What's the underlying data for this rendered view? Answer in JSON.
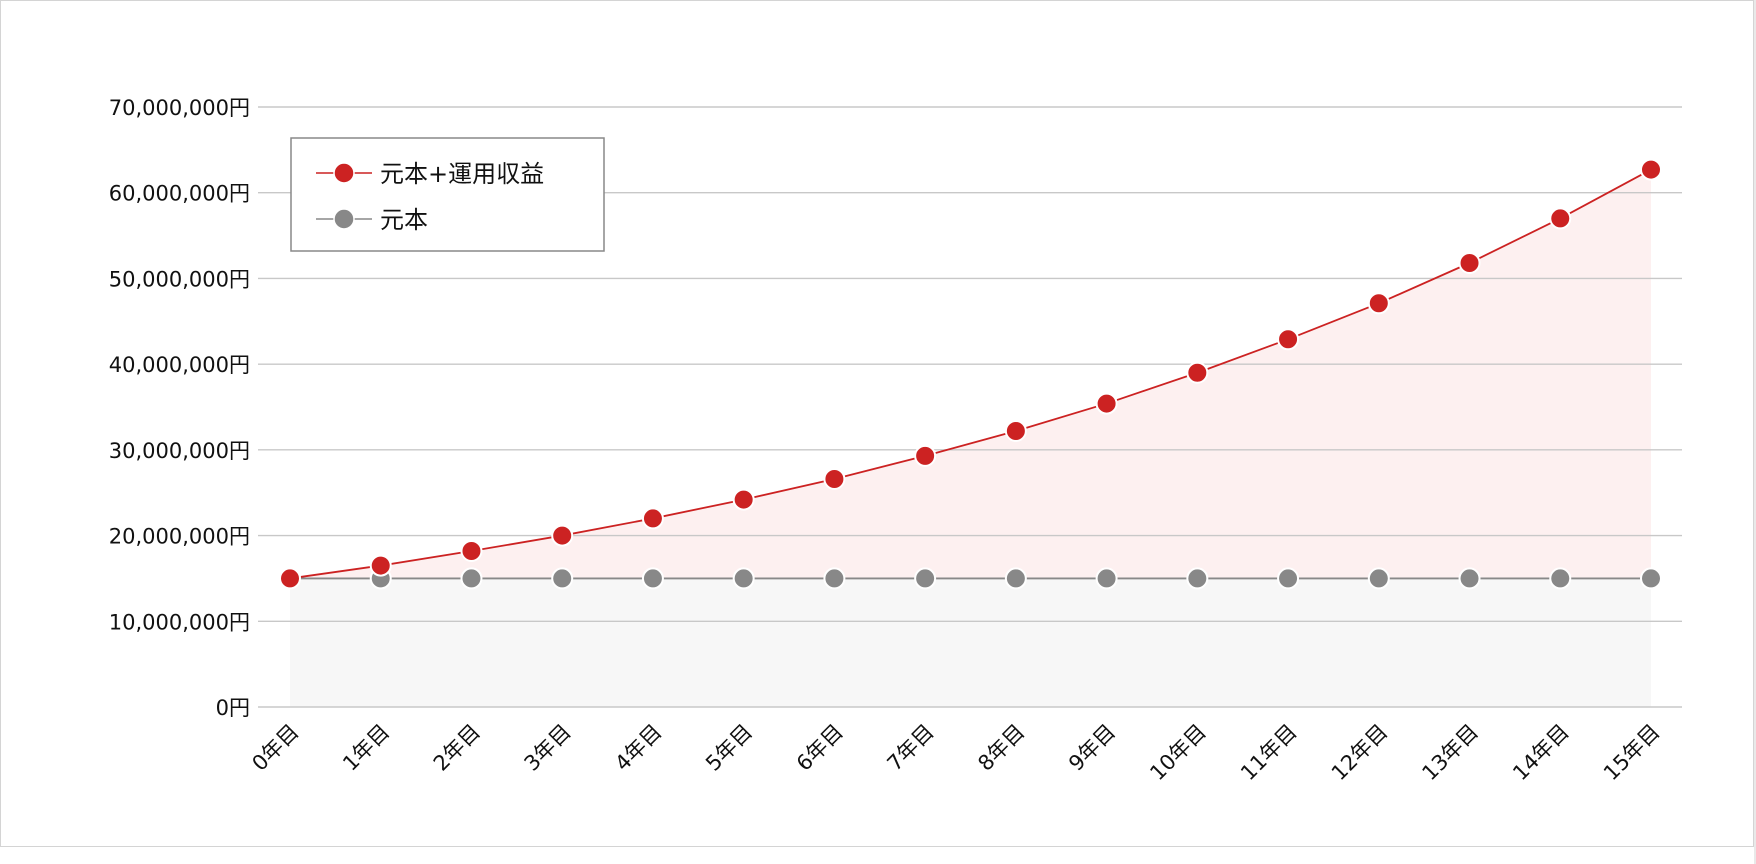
{
  "chart_data": {
    "type": "line",
    "title": "",
    "xlabel": "",
    "ylabel": "",
    "categories": [
      "0年目",
      "1年目",
      "2年目",
      "3年目",
      "4年目",
      "5年目",
      "6年目",
      "7年目",
      "8年目",
      "9年目",
      "10年目",
      "11年目",
      "12年目",
      "13年目",
      "14年目",
      "15年目"
    ],
    "y_ticks": [
      "0円",
      "10,000,000円",
      "20,000,000円",
      "30,000,000円",
      "40,000,000円",
      "50,000,000円",
      "60,000,000円",
      "70,000,000円"
    ],
    "ylim": [
      0,
      70000000
    ],
    "grid": true,
    "legend_position": "top-left",
    "series": [
      {
        "name": "元本+運用収益",
        "color": "#cc2222",
        "fill": "#fdf0f0",
        "values": [
          15000000,
          16500000,
          18200000,
          20000000,
          22000000,
          24200000,
          26600000,
          29300000,
          32200000,
          35400000,
          39000000,
          42900000,
          47100000,
          51800000,
          57000000,
          62700000
        ]
      },
      {
        "name": "元本",
        "color": "#888888",
        "fill": "#f7f7f7",
        "values": [
          15000000,
          15000000,
          15000000,
          15000000,
          15000000,
          15000000,
          15000000,
          15000000,
          15000000,
          15000000,
          15000000,
          15000000,
          15000000,
          15000000,
          15000000,
          15000000
        ]
      }
    ]
  }
}
